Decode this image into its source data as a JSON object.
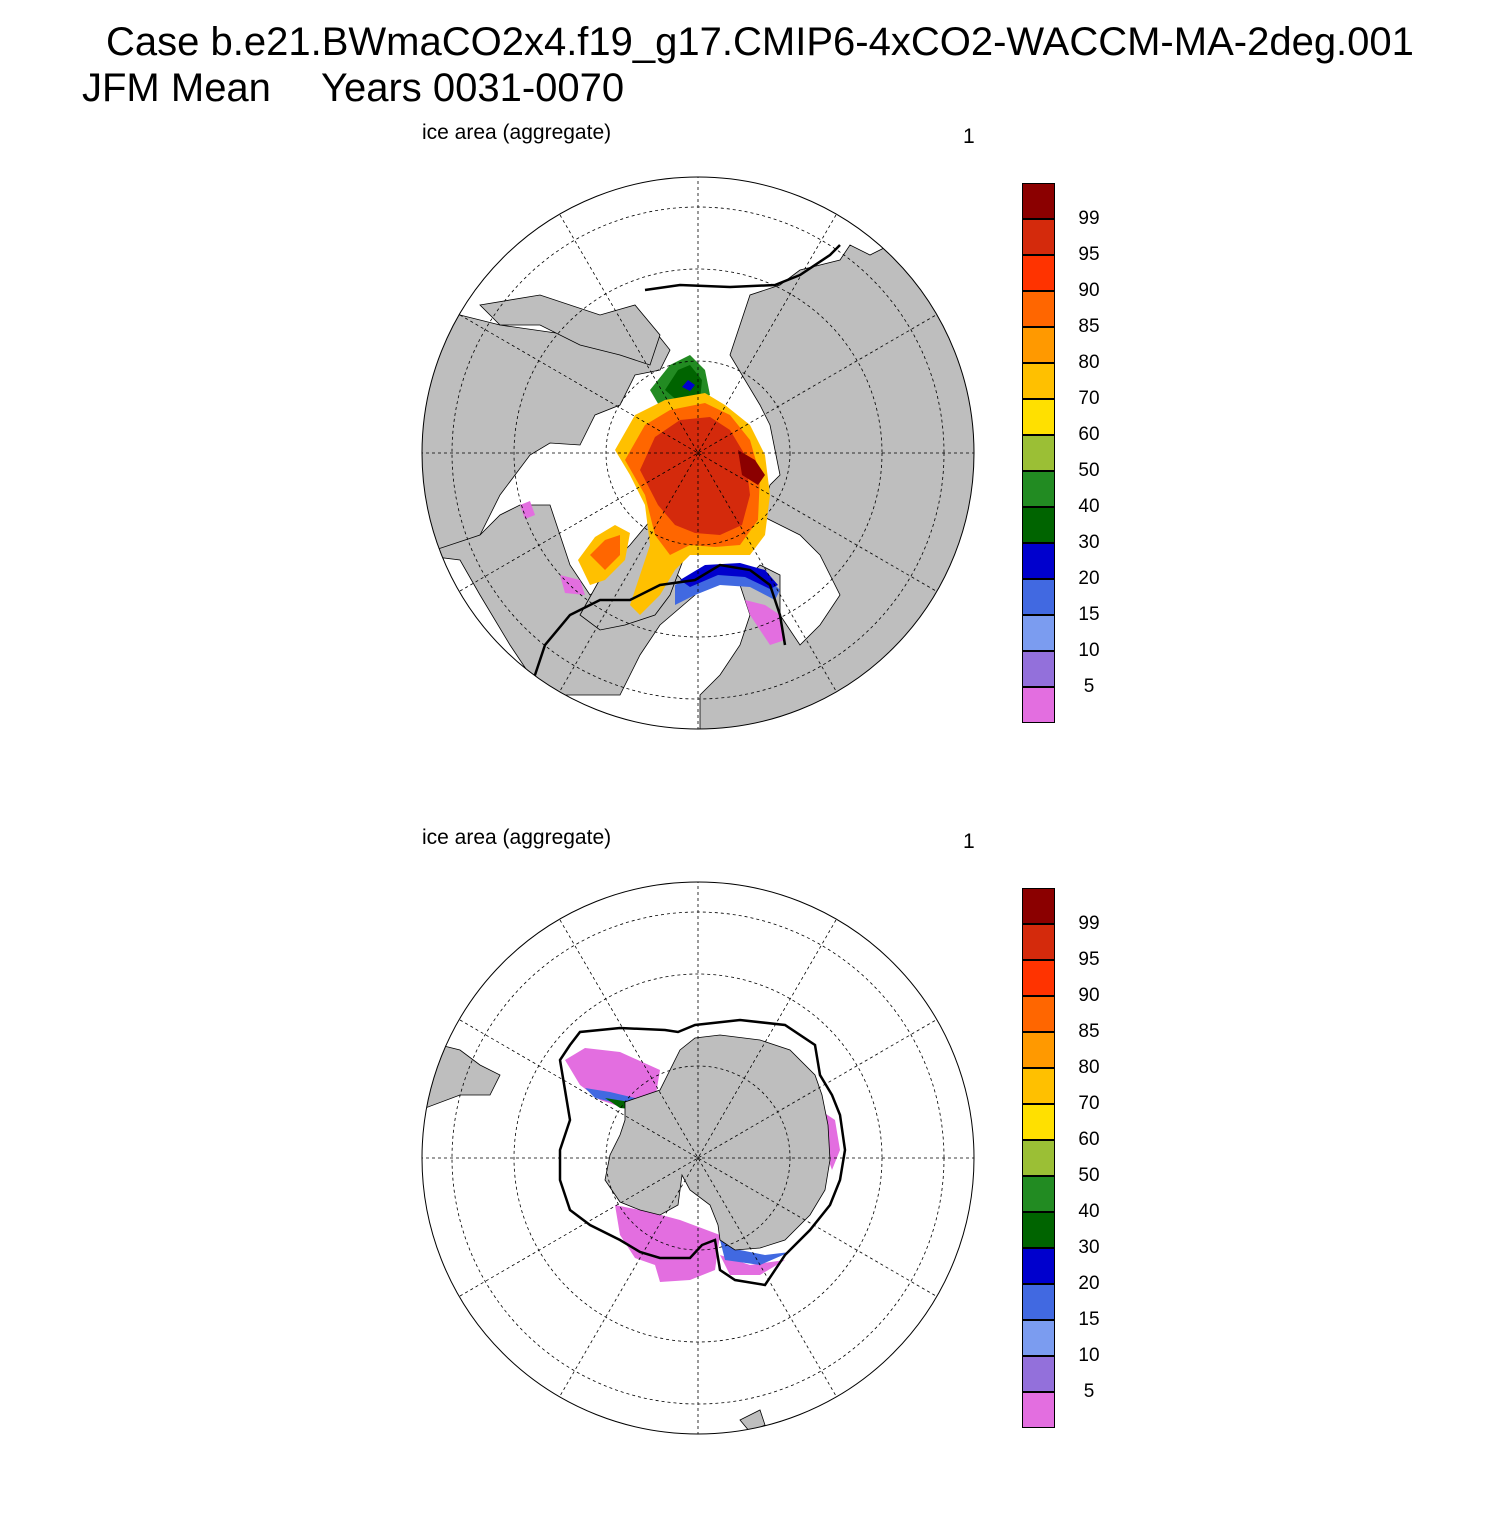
{
  "header": {
    "case_title": "Case b.e21.BWmaCO2x4.f19_g17.CMIP6-4xCO2-WACCM-MA-2deg.001",
    "period": "JFM Mean",
    "years": "Years 0031-0070"
  },
  "panels": [
    {
      "id": "north",
      "hemisphere": "Northern",
      "left_label": "ice area  (aggregate)",
      "right_label": "1"
    },
    {
      "id": "south",
      "hemisphere": "Southern",
      "left_label": "ice area  (aggregate)",
      "right_label": "1"
    }
  ],
  "colorbar": {
    "colors": [
      "#8b0000",
      "#d42a0c",
      "#ff3300",
      "#ff6600",
      "#ff9900",
      "#ffc000",
      "#ffe000",
      "#9bbf35",
      "#228b22",
      "#006400",
      "#0000cd",
      "#4169e1",
      "#7b9cf0",
      "#9370db",
      "#e36ee0"
    ],
    "labels": [
      "99",
      "95",
      "90",
      "85",
      "80",
      "70",
      "60",
      "50",
      "40",
      "30",
      "20",
      "15",
      "10",
      "5"
    ]
  },
  "chart_data": {
    "type": "polar-stereographic map (filled contour)",
    "variable": "ice area (aggregate)",
    "units": "%",
    "season": "JFM",
    "years": "0031-0070",
    "contour_levels": [
      5,
      10,
      15,
      20,
      30,
      40,
      50,
      60,
      70,
      80,
      85,
      90,
      95,
      99
    ],
    "colors": [
      "#e36ee0",
      "#9370db",
      "#7b9cf0",
      "#4169e1",
      "#0000cd",
      "#006400",
      "#228b22",
      "#9bbf35",
      "#ffe000",
      "#ffc000",
      "#ff9900",
      "#ff6600",
      "#ff3300",
      "#d42a0c",
      "#8b0000"
    ],
    "panels": [
      {
        "hemisphere": "Northern",
        "land": "gray",
        "ocean": "white",
        "reference_line": "black contour (ice edge)"
      },
      {
        "hemisphere": "Southern",
        "land": "gray",
        "ocean": "white",
        "reference_line": "black contour (ice edge)"
      }
    ]
  }
}
